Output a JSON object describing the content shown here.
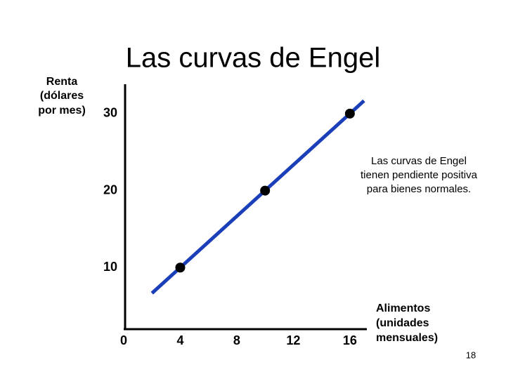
{
  "chart_data": {
    "type": "line",
    "title": "Las curvas de Engel",
    "ylabel": [
      "Renta",
      "(dólares",
      "por mes)"
    ],
    "xlabel": [
      "Alimentos",
      "(unidades",
      "mensuales)"
    ],
    "annotation": [
      "Las curvas de Engel",
      "tienen pendiente positiva",
      "para bienes normales."
    ],
    "page_number": "18",
    "xlim": [
      0,
      17.2
    ],
    "xticks": [
      0,
      4,
      8,
      12,
      16
    ],
    "ylim": [
      2,
      34
    ],
    "yticks": [
      10,
      20,
      30
    ],
    "series": [
      {
        "color": "#1a3fb8",
        "x": [
          2,
          17
        ],
        "values": [
          6.67,
          31.67
        ],
        "line": true,
        "marker": false
      },
      {
        "color": "#000000",
        "x": [
          4,
          10,
          16
        ],
        "values": [
          10,
          20,
          30
        ],
        "line": false,
        "marker": true
      }
    ]
  }
}
